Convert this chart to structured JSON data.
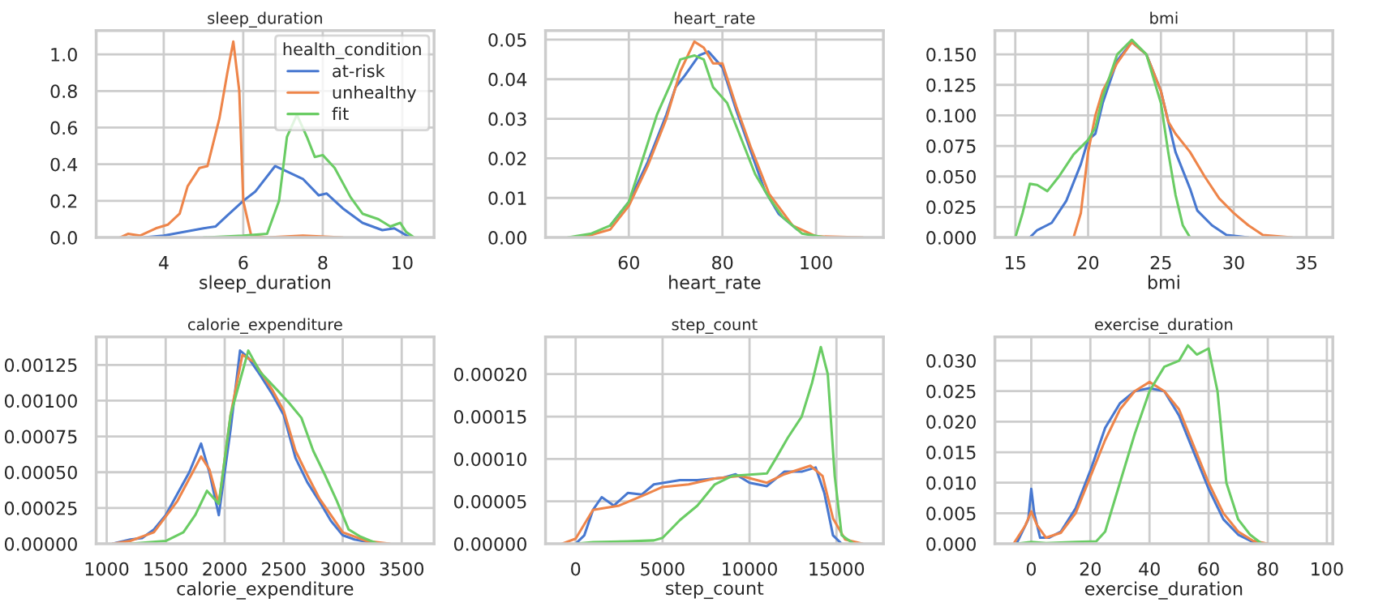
{
  "chart_data": [
    {
      "type": "line",
      "title": "sleep_duration",
      "xlabel": "sleep_duration",
      "legend": "top right",
      "legend_title": "health_condition",
      "grid": true,
      "xlim": [
        2.3,
        10.8
      ],
      "xticks": [
        4,
        6,
        8,
        10
      ],
      "ylim": [
        0,
        1.13
      ],
      "yticks": [
        {
          "value": 0,
          "label": "0.0"
        },
        {
          "value": 0.2,
          "label": "0.2"
        },
        {
          "value": 0.4,
          "label": "0.4"
        },
        {
          "value": 0.6,
          "label": "0.6"
        },
        {
          "value": 0.8,
          "label": "0.8"
        },
        {
          "value": 1.0,
          "label": "1.0"
        }
      ],
      "series": [
        {
          "name": "at-risk",
          "color": "#4878d0",
          "x": [
            3.5,
            4,
            4.5,
            5,
            5.3,
            5.6,
            6,
            6.3,
            6.8,
            7.1,
            7.5,
            7.9,
            8.1,
            8.5,
            9,
            9.5,
            9.8,
            10.2
          ],
          "values": [
            0,
            0.01,
            0.03,
            0.05,
            0.06,
            0.12,
            0.2,
            0.25,
            0.39,
            0.36,
            0.32,
            0.23,
            0.24,
            0.16,
            0.08,
            0.04,
            0.05,
            0
          ]
        },
        {
          "name": "unhealthy",
          "color": "#ee854a",
          "x": [
            2.9,
            3.1,
            3.4,
            3.8,
            4.1,
            4.4,
            4.6,
            4.9,
            5.1,
            5.4,
            5.6,
            5.75,
            5.9,
            6.0,
            6.2,
            6.6,
            7.5,
            8.5
          ],
          "values": [
            0,
            0.02,
            0.01,
            0.05,
            0.07,
            0.13,
            0.28,
            0.38,
            0.39,
            0.65,
            0.9,
            1.07,
            0.8,
            0.2,
            0.01,
            0,
            0.01,
            0
          ]
        },
        {
          "name": "fit",
          "color": "#6acc64",
          "x": [
            5,
            6,
            6.6,
            6.9,
            7.1,
            7.35,
            7.6,
            7.8,
            8.0,
            8.3,
            8.7,
            9.0,
            9.4,
            9.7,
            9.95,
            10.1,
            10.3
          ],
          "values": [
            0,
            0.01,
            0.02,
            0.2,
            0.55,
            0.67,
            0.55,
            0.44,
            0.45,
            0.38,
            0.22,
            0.13,
            0.1,
            0.06,
            0.08,
            0.03,
            0
          ]
        }
      ]
    },
    {
      "type": "line",
      "title": "heart_rate",
      "xlabel": "heart_rate",
      "grid": true,
      "xlim": [
        42.2,
        114.4
      ],
      "xticks": [
        60,
        80,
        100
      ],
      "ylim": [
        0,
        0.0523
      ],
      "yticks": [
        {
          "value": 0,
          "label": "0.00"
        },
        {
          "value": 0.01,
          "label": "0.01"
        },
        {
          "value": 0.02,
          "label": "0.02"
        },
        {
          "value": 0.03,
          "label": "0.03"
        },
        {
          "value": 0.04,
          "label": "0.04"
        },
        {
          "value": 0.05,
          "label": "0.05"
        }
      ],
      "series": [
        {
          "color": "#4878d0",
          "x": [
            56,
            60,
            64,
            68,
            70,
            72,
            75,
            77,
            80,
            83,
            86,
            89,
            92,
            96
          ],
          "values": [
            0.003,
            0.009,
            0.019,
            0.031,
            0.038,
            0.041,
            0.046,
            0.047,
            0.043,
            0.032,
            0.022,
            0.012,
            0.006,
            0.002
          ]
        },
        {
          "color": "#ee854a",
          "x": [
            50,
            56,
            60,
            64,
            68,
            71,
            74,
            76,
            78,
            80,
            83,
            86,
            90,
            95,
            100,
            110
          ],
          "values": [
            0,
            0.002,
            0.008,
            0.018,
            0.03,
            0.042,
            0.0495,
            0.048,
            0.044,
            0.044,
            0.033,
            0.023,
            0.011,
            0.003,
            0.0003,
            0
          ]
        },
        {
          "color": "#6acc64",
          "x": [
            47,
            52,
            56,
            60,
            63,
            66,
            69,
            71,
            74,
            76,
            78,
            81,
            84,
            87,
            90,
            93,
            97,
            102
          ],
          "values": [
            0,
            0.001,
            0.003,
            0.009,
            0.02,
            0.031,
            0.039,
            0.045,
            0.046,
            0.045,
            0.038,
            0.034,
            0.025,
            0.016,
            0.01,
            0.005,
            0.001,
            0
          ]
        }
      ]
    },
    {
      "type": "line",
      "title": "bmi",
      "xlabel": "bmi",
      "grid": true,
      "xlim": [
        13.6,
        36.8
      ],
      "xticks": [
        15,
        20,
        25,
        30,
        35
      ],
      "ylim": [
        0,
        0.1695
      ],
      "yticks": [
        {
          "value": 0,
          "label": "0.000"
        },
        {
          "value": 0.025,
          "label": "0.025"
        },
        {
          "value": 0.05,
          "label": "0.050"
        },
        {
          "value": 0.075,
          "label": "0.075"
        },
        {
          "value": 0.1,
          "label": "0.100"
        },
        {
          "value": 0.125,
          "label": "0.125"
        },
        {
          "value": 0.15,
          "label": "0.150"
        }
      ],
      "series": [
        {
          "color": "#4878d0",
          "x": [
            16,
            16.5,
            17.5,
            18.5,
            19.5,
            20,
            20.5,
            21,
            22,
            23,
            24,
            25,
            25.5,
            26,
            27,
            27.5,
            28.5,
            29.5,
            31
          ],
          "values": [
            0,
            0.006,
            0.012,
            0.03,
            0.06,
            0.08,
            0.085,
            0.11,
            0.145,
            0.16,
            0.15,
            0.12,
            0.095,
            0.07,
            0.04,
            0.022,
            0.01,
            0.002,
            0
          ]
        },
        {
          "color": "#ee854a",
          "x": [
            19,
            19.5,
            20,
            20.5,
            21,
            22,
            23,
            24,
            25,
            25.5,
            26,
            27,
            28,
            29,
            30,
            31,
            32,
            34
          ],
          "values": [
            0,
            0.02,
            0.07,
            0.1,
            0.12,
            0.143,
            0.16,
            0.15,
            0.12,
            0.095,
            0.085,
            0.07,
            0.05,
            0.032,
            0.02,
            0.01,
            0.002,
            0
          ]
        },
        {
          "color": "#6acc64",
          "x": [
            15,
            15.5,
            16,
            16.5,
            17.2,
            18,
            19,
            20,
            20.5,
            21,
            22,
            23,
            24,
            25,
            25.5,
            26,
            26.5,
            27
          ],
          "values": [
            0,
            0.02,
            0.044,
            0.043,
            0.038,
            0.05,
            0.068,
            0.08,
            0.09,
            0.115,
            0.15,
            0.162,
            0.15,
            0.11,
            0.07,
            0.035,
            0.01,
            0
          ]
        }
      ]
    },
    {
      "type": "line",
      "title": "calorie_expenditure",
      "xlabel": "calorie_expenditure",
      "grid": true,
      "xlim": [
        911,
        3774
      ],
      "xticks": [
        1000,
        1500,
        2000,
        2500,
        3000,
        3500
      ],
      "ylim": [
        0,
        0.001446
      ],
      "yticks": [
        {
          "value": 0,
          "label": "0.00000"
        },
        {
          "value": 0.00025,
          "label": "0.00025"
        },
        {
          "value": 0.0005,
          "label": "0.00050"
        },
        {
          "value": 0.00075,
          "label": "0.00075"
        },
        {
          "value": 0.001,
          "label": "0.00100"
        },
        {
          "value": 0.00125,
          "label": "0.00125"
        }
      ],
      "series": [
        {
          "color": "#4878d0",
          "x": [
            1050,
            1200,
            1300,
            1400,
            1500,
            1600,
            1700,
            1800,
            1870,
            1950,
            2050,
            2130,
            2200,
            2300,
            2400,
            2500,
            2600,
            2700,
            2800,
            2900,
            3000,
            3100,
            3300
          ],
          "values": [
            0,
            3e-05,
            4e-05,
            0.0001,
            0.0002,
            0.00035,
            0.0005,
            0.0007,
            0.0005,
            0.0002,
            0.0008,
            0.00135,
            0.0013,
            0.00118,
            0.00105,
            0.0009,
            0.0006,
            0.00043,
            0.0003,
            0.00016,
            6e-05,
            3e-05,
            0
          ]
        },
        {
          "color": "#ee854a",
          "x": [
            1050,
            1200,
            1400,
            1600,
            1800,
            1870,
            1950,
            2050,
            2150,
            2250,
            2400,
            2500,
            2600,
            2700,
            2800,
            2900,
            3000,
            3200,
            3400
          ],
          "values": [
            0,
            2e-05,
            8e-05,
            0.0003,
            0.00061,
            0.00052,
            0.00028,
            0.0009,
            0.00132,
            0.00127,
            0.00108,
            0.00093,
            0.00065,
            0.00048,
            0.00032,
            0.0002,
            8e-05,
            2e-05,
            0
          ]
        },
        {
          "color": "#6acc64",
          "x": [
            1200,
            1500,
            1650,
            1750,
            1850,
            1950,
            2050,
            2200,
            2300,
            2450,
            2550,
            2650,
            2750,
            2850,
            2950,
            3050,
            3150,
            3300
          ],
          "values": [
            0,
            2e-05,
            8e-05,
            0.0002,
            0.00037,
            0.00028,
            0.0009,
            0.00135,
            0.0012,
            0.00107,
            0.00098,
            0.00088,
            0.00065,
            0.00048,
            0.0003,
            0.0001,
            5e-05,
            0
          ]
        }
      ]
    },
    {
      "type": "line",
      "title": "step_count",
      "xlabel": "step_count",
      "grid": true,
      "xlim": [
        -1730,
        17700
      ],
      "xticks": [
        0,
        5000,
        10000,
        15000
      ],
      "ylim": [
        0,
        0.000244
      ],
      "yticks": [
        {
          "value": 0,
          "label": "0.00000"
        },
        {
          "value": 5e-05,
          "label": "0.00005"
        },
        {
          "value": 0.0001,
          "label": "0.00010"
        },
        {
          "value": 0.00015,
          "label": "0.00015"
        },
        {
          "value": 0.0002,
          "label": "0.00020"
        }
      ],
      "series": [
        {
          "color": "#4878d0",
          "x": [
            0,
            500,
            1000,
            1500,
            2200,
            3000,
            3800,
            4500,
            6000,
            7000,
            8500,
            9200,
            10000,
            11000,
            12000,
            13000,
            13800,
            14300,
            14800,
            15300
          ],
          "values": [
            0,
            1e-05,
            4e-05,
            5.5e-05,
            4.5e-05,
            6e-05,
            5.8e-05,
            7e-05,
            7.5e-05,
            7.5e-05,
            7.8e-05,
            8.2e-05,
            7.2e-05,
            6.8e-05,
            8.5e-05,
            8.5e-05,
            9e-05,
            6e-05,
            1e-05,
            0
          ]
        },
        {
          "color": "#ee854a",
          "x": [
            -800,
            0,
            1000,
            2500,
            4000,
            5000,
            6500,
            8000,
            9500,
            11000,
            12000,
            13500,
            14200,
            14800,
            15500,
            16500
          ],
          "values": [
            0,
            6e-06,
            4e-05,
            4.5e-05,
            5.8e-05,
            6.7e-05,
            7e-05,
            7.7e-05,
            8e-05,
            7.2e-05,
            8.2e-05,
            9.2e-05,
            8e-05,
            3e-05,
            5e-06,
            0
          ]
        },
        {
          "color": "#6acc64",
          "x": [
            0,
            1000,
            3000,
            4500,
            5000,
            6000,
            7000,
            8000,
            9000,
            11000,
            11500,
            12200,
            13000,
            13600,
            14100,
            14500,
            14900,
            15300,
            16000
          ],
          "values": [
            0,
            2e-06,
            3e-06,
            4e-06,
            7e-06,
            2.8e-05,
            4.5e-05,
            7e-05,
            8e-05,
            8.3e-05,
            0.0001,
            0.000125,
            0.00015,
            0.00019,
            0.000232,
            0.0002,
            8e-05,
            1e-05,
            0
          ]
        }
      ]
    },
    {
      "type": "line",
      "title": "exercise_duration",
      "xlabel": "exercise_duration",
      "grid": true,
      "xlim": [
        -12.3,
        102
      ],
      "xticks": [
        0,
        20,
        40,
        60,
        80,
        100
      ],
      "ylim": [
        0,
        0.0339
      ],
      "yticks": [
        {
          "value": 0,
          "label": "0.000"
        },
        {
          "value": 0.005,
          "label": "0.005"
        },
        {
          "value": 0.01,
          "label": "0.010"
        },
        {
          "value": 0.015,
          "label": "0.015"
        },
        {
          "value": 0.02,
          "label": "0.020"
        },
        {
          "value": 0.025,
          "label": "0.025"
        },
        {
          "value": 0.03,
          "label": "0.030"
        }
      ],
      "series": [
        {
          "color": "#4878d0",
          "x": [
            -5,
            -1,
            0,
            1,
            3,
            6,
            10,
            15,
            20,
            25,
            30,
            35,
            40,
            45,
            50,
            55,
            60,
            65,
            70,
            75,
            80
          ],
          "values": [
            0,
            0.004,
            0.009,
            0.005,
            0.001,
            0.001,
            0.002,
            0.0058,
            0.012,
            0.019,
            0.023,
            0.025,
            0.0255,
            0.025,
            0.021,
            0.015,
            0.009,
            0.004,
            0.0015,
            0.0003,
            0
          ]
        },
        {
          "color": "#ee854a",
          "x": [
            -6,
            -2,
            0,
            2,
            5,
            10,
            15,
            20,
            25,
            30,
            35,
            40,
            45,
            50,
            55,
            60,
            65,
            70,
            75,
            80
          ],
          "values": [
            0,
            0.003,
            0.0053,
            0.003,
            0.001,
            0.0018,
            0.005,
            0.011,
            0.017,
            0.022,
            0.025,
            0.0265,
            0.025,
            0.022,
            0.016,
            0.01,
            0.005,
            0.002,
            0.0005,
            0
          ]
        },
        {
          "color": "#6acc64",
          "x": [
            -5,
            0,
            5,
            15,
            22,
            25,
            30,
            35,
            40,
            45,
            50,
            53,
            56,
            60,
            63,
            66,
            70,
            74,
            78
          ],
          "values": [
            0,
            0.0003,
            0.0001,
            0.0003,
            0.0004,
            0.002,
            0.01,
            0.018,
            0.025,
            0.029,
            0.03,
            0.0325,
            0.031,
            0.032,
            0.025,
            0.01,
            0.004,
            0.0015,
            0
          ]
        }
      ]
    }
  ]
}
